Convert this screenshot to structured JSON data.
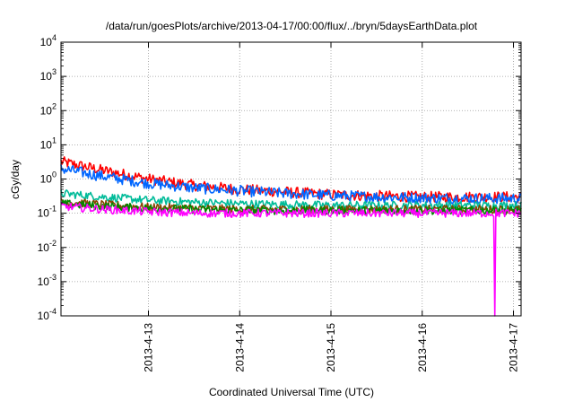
{
  "chart_data": {
    "type": "line",
    "title": "/data/run/goesPlots/archive/2013-04-17/00:00/flux/../bryn/5daysEarthData.plot",
    "xlabel": "Coordinated Universal Time (UTC)",
    "ylabel": "cGy/day",
    "y_scale": "log",
    "ylim": [
      0.0001,
      10000
    ],
    "y_tick_labels": [
      {
        "base": "10",
        "exp": "-4",
        "value": 0.0001
      },
      {
        "base": "10",
        "exp": "-3",
        "value": 0.001
      },
      {
        "base": "10",
        "exp": "-2",
        "value": 0.01
      },
      {
        "base": "10",
        "exp": "-1",
        "value": 0.1
      },
      {
        "base": "10",
        "exp": "0",
        "value": 1
      },
      {
        "base": "10",
        "exp": "1",
        "value": 10
      },
      {
        "base": "10",
        "exp": "2",
        "value": 100
      },
      {
        "base": "10",
        "exp": "3",
        "value": 1000
      },
      {
        "base": "10",
        "exp": "4",
        "value": 10000
      }
    ],
    "xlim": [
      "2013-04-12 01:00",
      "2013-04-17 02:00"
    ],
    "x_tick_labels": [
      {
        "label": "2013-4-13",
        "value": "2013-04-13"
      },
      {
        "label": "2013-4-14",
        "value": "2013-04-14"
      },
      {
        "label": "2013-4-15",
        "value": "2013-04-15"
      },
      {
        "label": "2013-4-16",
        "value": "2013-04-16"
      },
      {
        "label": "2013-4-17",
        "value": "2013-04-17"
      }
    ],
    "grid": true,
    "x": [
      "2013-04-12 01:00",
      "2013-04-12 12:00",
      "2013-04-13 00:00",
      "2013-04-13 12:00",
      "2013-04-14 00:00",
      "2013-04-14 12:00",
      "2013-04-15 00:00",
      "2013-04-15 12:00",
      "2013-04-16 00:00",
      "2013-04-16 12:00",
      "2013-04-17 00:00",
      "2013-04-17 02:00"
    ],
    "series": [
      {
        "color": "#ff0000",
        "values": [
          3.2,
          1.8,
          1.0,
          0.65,
          0.5,
          0.42,
          0.35,
          0.32,
          0.3,
          0.3,
          0.3,
          0.3
        ]
      },
      {
        "color": "#0066ff",
        "values": [
          2.0,
          1.2,
          0.75,
          0.55,
          0.45,
          0.38,
          0.33,
          0.3,
          0.28,
          0.27,
          0.27,
          0.27
        ]
      },
      {
        "color": "#00bb99",
        "values": [
          0.38,
          0.3,
          0.24,
          0.21,
          0.19,
          0.18,
          0.17,
          0.17,
          0.17,
          0.17,
          0.17,
          0.17
        ]
      },
      {
        "color": "#884400",
        "values": [
          0.22,
          0.18,
          0.15,
          0.14,
          0.13,
          0.13,
          0.13,
          0.13,
          0.13,
          0.13,
          0.13,
          0.13
        ]
      },
      {
        "color": "#008800",
        "values": [
          0.19,
          0.16,
          0.14,
          0.13,
          0.12,
          0.12,
          0.12,
          0.12,
          0.12,
          0.12,
          0.12,
          0.12
        ]
      },
      {
        "color": "#ff00ff",
        "values": [
          0.16,
          0.13,
          0.11,
          0.1,
          0.1,
          0.1,
          0.1,
          0.1,
          0.1,
          0.1,
          0.1,
          0.1
        ],
        "dropout": {
          "from": "2013-04-16 18:50",
          "to": "2013-04-16 19:10",
          "value": 0.0001
        }
      }
    ]
  }
}
